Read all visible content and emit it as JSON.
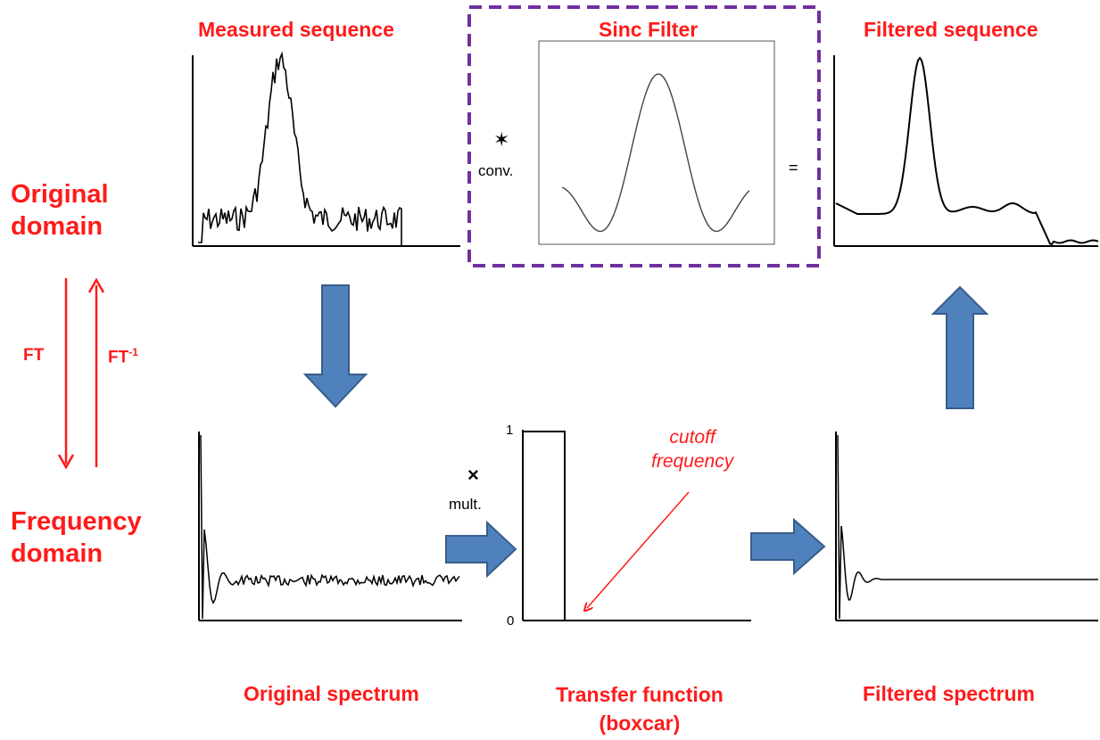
{
  "domains": {
    "original": [
      "Original",
      "domain"
    ],
    "frequency": [
      "Frequency",
      "domain"
    ]
  },
  "transforms": {
    "forward": "FT",
    "inverse": "FT",
    "inverse_superscript": "-1"
  },
  "panels": {
    "measured_sequence": "Measured sequence",
    "sinc_filter": "Sinc Filter",
    "filtered_sequence": "Filtered sequence",
    "original_spectrum": "Original spectrum",
    "transfer_function": [
      "Transfer function",
      "(boxcar)"
    ],
    "filtered_spectrum": "Filtered spectrum"
  },
  "operators": {
    "convolution_symbol": "✶",
    "convolution_label": "conv.",
    "equals": "=",
    "multiply_symbol": "×",
    "multiply_label": "mult."
  },
  "transfer_axis": {
    "top": "1",
    "bottom": "0"
  },
  "annotation": {
    "cutoff": [
      "cutoff",
      "frequency"
    ]
  },
  "colors": {
    "label_red": "#ff1a1a",
    "arrow_blue": "#4f81bd",
    "dashed_box": "#7030a0"
  }
}
